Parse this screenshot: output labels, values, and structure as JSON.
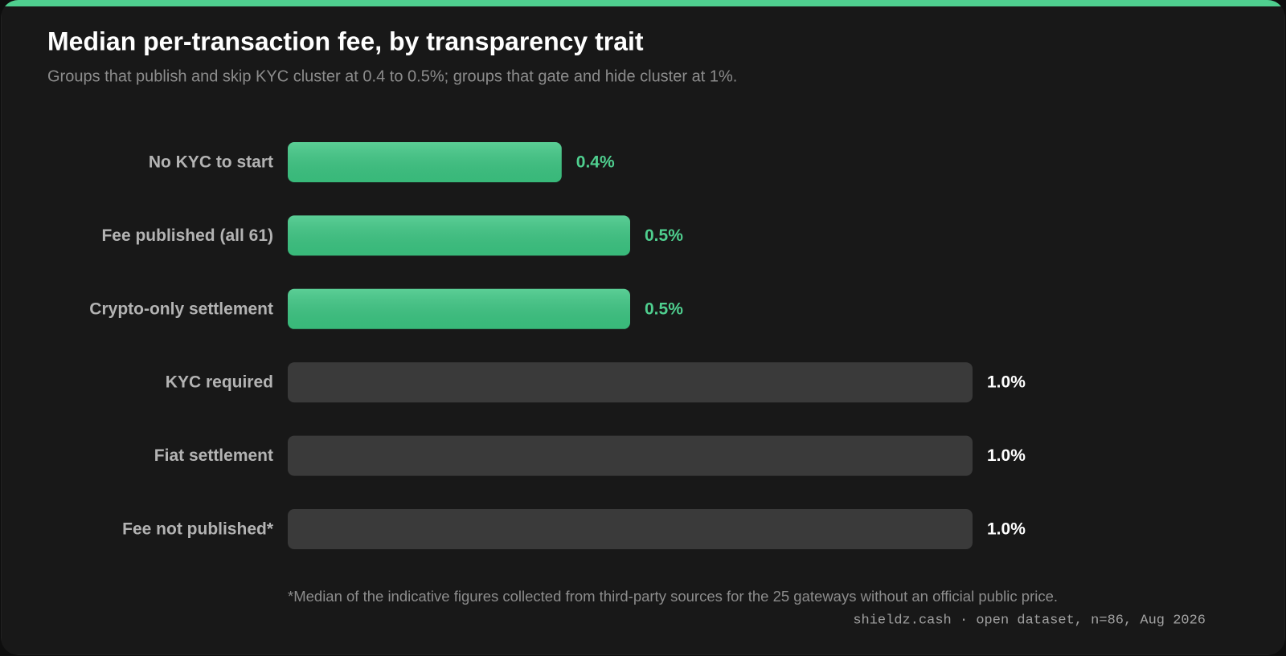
{
  "chart_data": {
    "type": "bar",
    "orientation": "horizontal",
    "title": "Median per-transaction fee, by transparency trait",
    "subtitle": "Groups that publish and skip KYC cluster at 0.4 to 0.5%; groups that gate and hide cluster at 1%.",
    "categories": [
      "No KYC to start",
      "Fee published (all 61)",
      "Crypto-only settlement",
      "KYC required",
      "Fiat settlement",
      "Fee not published*"
    ],
    "values": [
      0.4,
      0.5,
      0.5,
      1.0,
      1.0,
      1.0
    ],
    "value_labels": [
      "0.4%",
      "0.5%",
      "0.5%",
      "1.0%",
      "1.0%",
      "1.0%"
    ],
    "colors": [
      "#3cc582",
      "#3cc582",
      "#3cc582",
      "#3a3a3a",
      "#3a3a3a",
      "#3a3a3a"
    ],
    "label_colors": [
      "#4fcf8f",
      "#4fcf8f",
      "#4fcf8f",
      "#ffffff",
      "#ffffff",
      "#ffffff"
    ],
    "footnote": "*Median of the indicative figures collected from third-party sources for the 25 gateways without an official public price.",
    "source": "shieldz.cash · open dataset, n=86, Aug 2026"
  }
}
